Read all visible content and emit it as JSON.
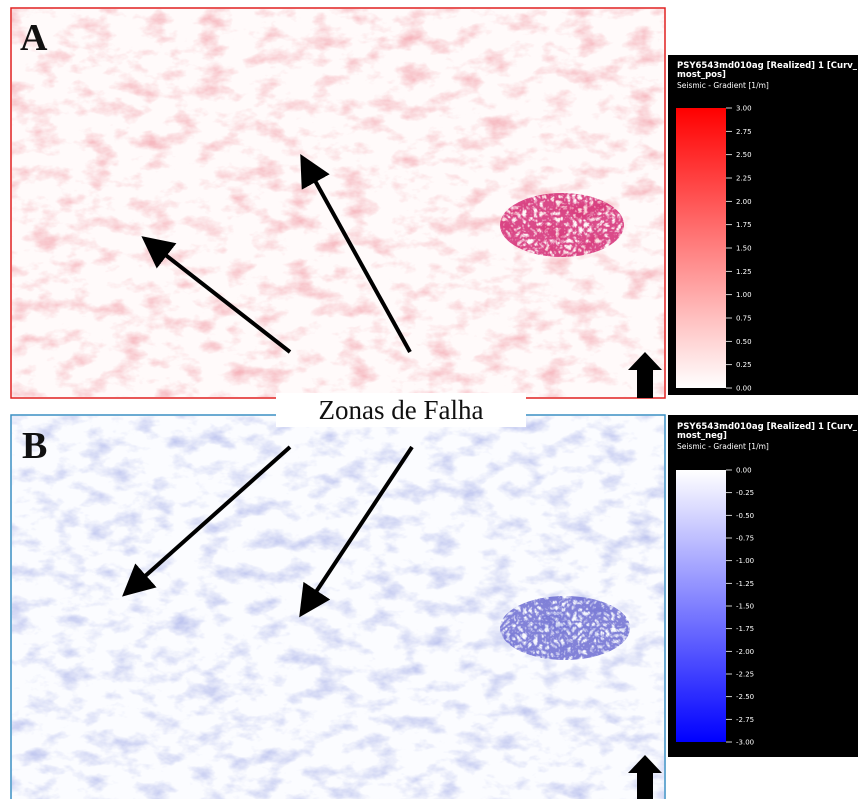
{
  "panels": [
    {
      "label": "A",
      "colorbar": {
        "title": [
          "PSY6543md010ag [Realized] 1 [Curv_",
          "most_pos]"
        ],
        "subtitle": "Seismic - Gradient [1/m]",
        "ticks": [
          "3.00",
          "2.75",
          "2.50",
          "2.25",
          "2.00",
          "1.75",
          "1.50",
          "1.25",
          "1.00",
          "0.75",
          "0.50",
          "0.25",
          "0.00"
        ]
      }
    },
    {
      "label": "B",
      "colorbar": {
        "title": [
          "PSY6543md010ag [Realized] 1 [Curv_",
          "most_neg]"
        ],
        "subtitle": "Seismic - Gradient [1/m]",
        "ticks": [
          "0.00",
          "-0.25",
          "-0.50",
          "-0.75",
          "-1.00",
          "-1.25",
          "-1.50",
          "-1.75",
          "-2.00",
          "-2.25",
          "-2.50",
          "-2.75",
          "-3.00"
        ]
      }
    }
  ],
  "annotation": "Zonas de Falha"
}
